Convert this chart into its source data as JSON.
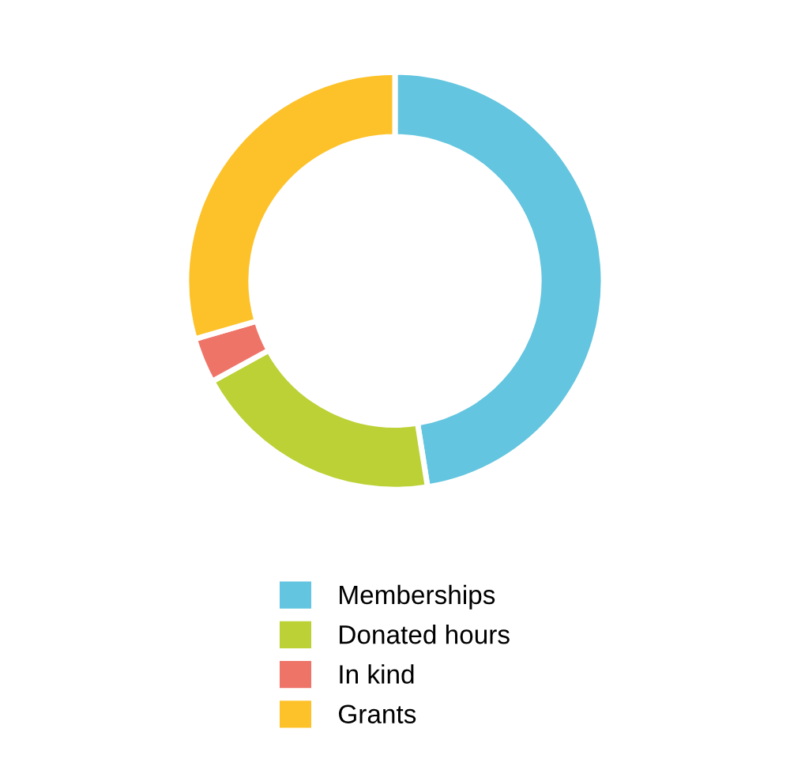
{
  "chart_data": {
    "type": "donut",
    "categories": [
      "Memberships",
      "Donated hours",
      "In kind",
      "Grants"
    ],
    "values": [
      47.5,
      19.5,
      3.5,
      29.5
    ],
    "colors": [
      "#63c5df",
      "#bcd136",
      "#ef7468",
      "#fdc22a"
    ],
    "legend": "bottom"
  }
}
